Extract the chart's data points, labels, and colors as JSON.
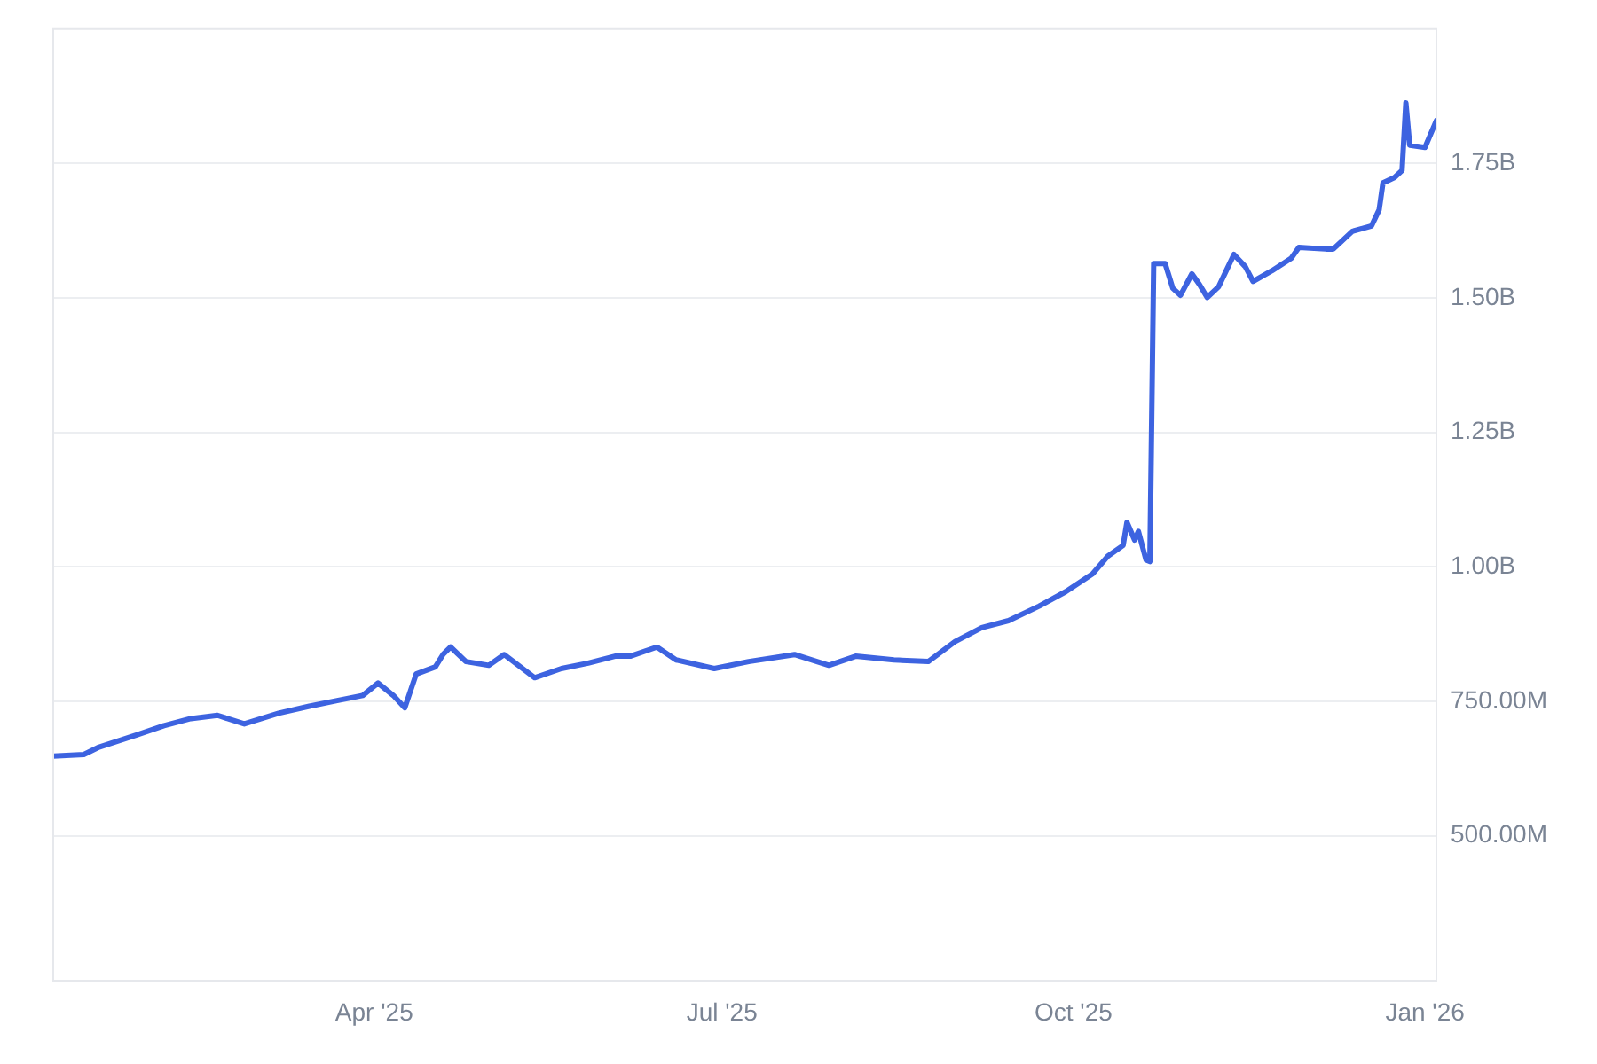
{
  "chart_data": {
    "type": "line",
    "x": [
      "2025-01-07",
      "2025-01-15",
      "2025-01-19",
      "2025-01-29",
      "2025-02-05",
      "2025-02-12",
      "2025-02-19",
      "2025-02-26",
      "2025-03-07",
      "2025-03-15",
      "2025-03-22",
      "2025-03-29",
      "2025-04-02",
      "2025-04-06",
      "2025-04-09",
      "2025-04-12",
      "2025-04-17",
      "2025-04-19",
      "2025-04-21",
      "2025-04-25",
      "2025-05-01",
      "2025-05-05",
      "2025-05-13",
      "2025-05-20",
      "2025-05-27",
      "2025-06-03",
      "2025-06-07",
      "2025-06-14",
      "2025-06-19",
      "2025-06-29",
      "2025-07-08",
      "2025-07-20",
      "2025-07-29",
      "2025-08-05",
      "2025-08-15",
      "2025-08-24",
      "2025-08-31",
      "2025-09-07",
      "2025-09-14",
      "2025-09-22",
      "2025-09-29",
      "2025-10-06",
      "2025-10-10",
      "2025-10-14",
      "2025-10-15",
      "2025-10-17",
      "2025-10-18",
      "2025-10-20",
      "2025-10-21",
      "2025-10-22",
      "2025-10-25",
      "2025-10-27",
      "2025-10-29",
      "2025-11-01",
      "2025-11-03",
      "2025-11-05",
      "2025-11-08",
      "2025-11-10",
      "2025-11-12",
      "2025-11-15",
      "2025-11-17",
      "2025-11-22",
      "2025-11-27",
      "2025-11-29",
      "2025-12-06",
      "2025-12-08",
      "2025-12-13",
      "2025-12-18",
      "2025-12-20",
      "2025-12-21",
      "2025-12-24",
      "2025-12-26",
      "2025-12-27",
      "2025-12-28",
      "2026-01-01",
      "2026-01-04"
    ],
    "series": [
      {
        "color": "#3d63e0",
        "values": [
          648000000,
          651000000,
          665000000,
          688000000,
          705000000,
          718000000,
          724000000,
          708000000,
          728000000,
          741000000,
          751000000,
          761000000,
          784000000,
          761000000,
          738000000,
          801000000,
          814000000,
          837000000,
          851000000,
          824000000,
          817000000,
          837000000,
          794000000,
          811000000,
          821000000,
          834000000,
          834000000,
          851000000,
          827000000,
          811000000,
          824000000,
          837000000,
          817000000,
          834000000,
          827000000,
          824000000,
          861000000,
          887000000,
          900000000,
          927000000,
          954000000,
          987000000,
          1020000000,
          1040000000,
          1083000000,
          1050000000,
          1066000000,
          1013000000,
          1010000000,
          1564000000,
          1564000000,
          1518000000,
          1505000000,
          1545000000,
          1525000000,
          1501000000,
          1521000000,
          1551000000,
          1581000000,
          1558000000,
          1531000000,
          1551000000,
          1574000000,
          1594000000,
          1591000000,
          1591000000,
          1624000000,
          1634000000,
          1664000000,
          1714000000,
          1724000000,
          1737000000,
          1863000000,
          1784000000,
          1780000000,
          1830000000
        ]
      }
    ],
    "xlim": [
      "2025-01-07",
      "2026-01-04"
    ],
    "xticks": [
      {
        "value": "2025-04-01",
        "label": "Apr '25"
      },
      {
        "value": "2025-07-01",
        "label": "Jul '25"
      },
      {
        "value": "2025-10-01",
        "label": "Oct '25"
      },
      {
        "value": "2026-01-01",
        "label": "Jan '26"
      }
    ],
    "ylim": [
      230000000,
      2000000000
    ],
    "yticks": [
      {
        "value": 500000000,
        "label": "500.00M"
      },
      {
        "value": 750000000,
        "label": "750.00M"
      },
      {
        "value": 1000000000,
        "label": "1.00B"
      },
      {
        "value": 1250000000,
        "label": "1.25B"
      },
      {
        "value": 1500000000,
        "label": "1.50B"
      },
      {
        "value": 1750000000,
        "label": "1.75B"
      }
    ],
    "grid": "y",
    "legend": false,
    "marker": "none",
    "line_style": "solid"
  }
}
